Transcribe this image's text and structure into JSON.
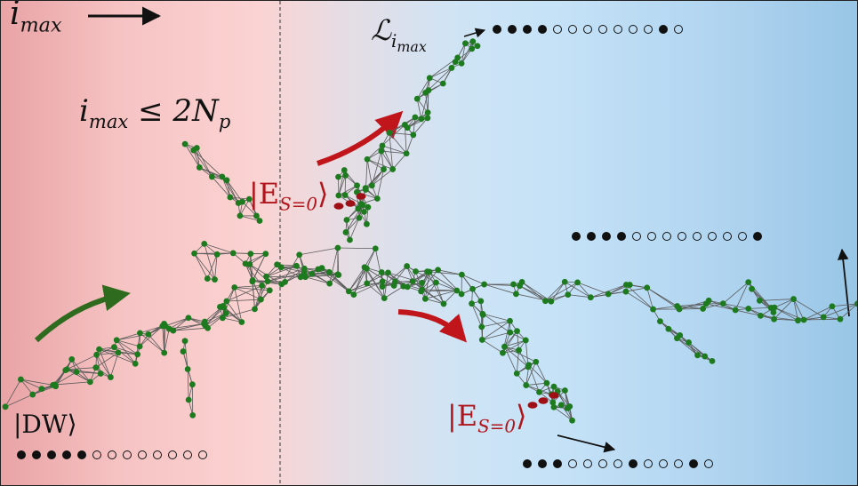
{
  "labels": {
    "imax": "i",
    "imax_sub": "max",
    "constraint_left": "i",
    "constraint_sub": "max",
    "constraint_rest": " ≤ 2N",
    "constraint_rest_sub": "p",
    "script_L": "ℒ",
    "script_L_sub": "i",
    "script_L_subsub": "max",
    "es0_top": "|E",
    "es0_top_sub": "S=0",
    "es0_top_close": "⟩",
    "es0_bottom": "|E",
    "es0_bottom_sub": "S=0",
    "es0_bottom_close": "⟩",
    "dw_label": "|DW⟩"
  },
  "configurations": {
    "dw": [
      1,
      1,
      1,
      1,
      1,
      0,
      0,
      0,
      0,
      0,
      0,
      0,
      0
    ],
    "top": [
      1,
      1,
      1,
      1,
      0,
      0,
      0,
      0,
      0,
      0,
      0,
      1,
      0
    ],
    "right": [
      1,
      1,
      1,
      1,
      0,
      0,
      0,
      0,
      0,
      0,
      0,
      0,
      1
    ],
    "bottom": [
      1,
      1,
      1,
      0,
      0,
      0,
      0,
      1,
      0,
      0,
      0,
      1,
      0
    ]
  },
  "colors": {
    "node": "#1e7a1e",
    "node_highlight": "#9e1015",
    "edge": "#5a5a5a",
    "arrow_green": "#2f6b1e",
    "arrow_red": "#c0151b",
    "ink": "#111111"
  },
  "icons": [
    "arrow-right-icon",
    "curved-arrow-green-icon",
    "curved-arrow-red-icon"
  ]
}
